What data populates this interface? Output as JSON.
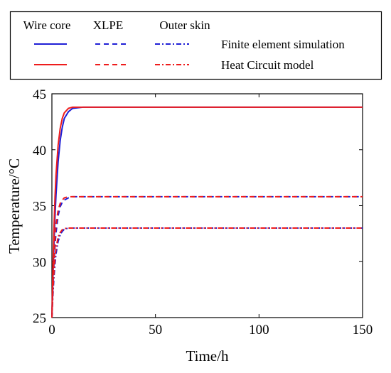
{
  "chart_data": {
    "type": "line",
    "title": "",
    "xlabel": "Time/h",
    "ylabel": "Temperature/°C",
    "xlim": [
      0,
      150
    ],
    "ylim": [
      25,
      45
    ],
    "xticks": [
      0,
      50,
      100,
      150
    ],
    "yticks": [
      25,
      30,
      35,
      40,
      45
    ],
    "grid": false,
    "legend": {
      "placement": "top",
      "columns": [
        "Wire core",
        "XLPE",
        "Outer skin"
      ],
      "rows": [
        "Finite element simulation",
        "Heat Circuit model"
      ]
    },
    "colors": {
      "simulation": "#1f1fd6",
      "model": "#ee1c1c"
    },
    "series": [
      {
        "layer": "Wire core",
        "method": "Finite element simulation",
        "style": "solid",
        "x": [
          0,
          0.5,
          1,
          1.5,
          2,
          3,
          4,
          5,
          6,
          8,
          10,
          15,
          20,
          30,
          50,
          75,
          100,
          125,
          150
        ],
        "y": [
          25,
          28.5,
          31.5,
          34.0,
          36.0,
          38.9,
          40.8,
          42.0,
          42.8,
          43.4,
          43.7,
          43.8,
          43.8,
          43.8,
          43.8,
          43.8,
          43.8,
          43.8,
          43.8
        ]
      },
      {
        "layer": "Wire core",
        "method": "Heat Circuit model",
        "style": "solid",
        "x": [
          0,
          0.5,
          1,
          1.5,
          2,
          3,
          4,
          5,
          6,
          8,
          10,
          15,
          20,
          30,
          50,
          75,
          100,
          125,
          150
        ],
        "y": [
          25,
          29.5,
          33.0,
          35.8,
          37.8,
          40.4,
          41.9,
          42.8,
          43.3,
          43.7,
          43.8,
          43.8,
          43.8,
          43.8,
          43.8,
          43.8,
          43.8,
          43.8,
          43.8
        ]
      },
      {
        "layer": "XLPE",
        "method": "Finite element simulation",
        "style": "dashed",
        "x": [
          0,
          0.5,
          1,
          1.5,
          2,
          3,
          4,
          5,
          6,
          8,
          10,
          15,
          20,
          30,
          50,
          75,
          100,
          125,
          150
        ],
        "y": [
          25,
          27.8,
          29.8,
          31.4,
          32.6,
          34.1,
          34.9,
          35.3,
          35.5,
          35.7,
          35.8,
          35.8,
          35.8,
          35.8,
          35.8,
          35.8,
          35.8,
          35.8,
          35.8
        ]
      },
      {
        "layer": "XLPE",
        "method": "Heat Circuit model",
        "style": "dashed",
        "x": [
          0,
          0.5,
          1,
          1.5,
          2,
          3,
          4,
          5,
          6,
          8,
          10,
          15,
          20,
          30,
          50,
          75,
          100,
          125,
          150
        ],
        "y": [
          25,
          28.4,
          30.6,
          32.2,
          33.3,
          34.6,
          35.2,
          35.5,
          35.7,
          35.8,
          35.8,
          35.8,
          35.8,
          35.8,
          35.8,
          35.8,
          35.8,
          35.8,
          35.8
        ]
      },
      {
        "layer": "Outer skin",
        "method": "Finite element simulation",
        "style": "dashdot",
        "x": [
          0,
          0.5,
          1,
          1.5,
          2,
          3,
          4,
          5,
          6,
          8,
          10,
          15,
          20,
          30,
          50,
          75,
          100,
          125,
          150
        ],
        "y": [
          25,
          27.0,
          28.6,
          29.8,
          30.7,
          31.8,
          32.4,
          32.7,
          32.9,
          33.0,
          33.0,
          33.0,
          33.0,
          33.0,
          33.0,
          33.0,
          33.0,
          33.0,
          33.0
        ]
      },
      {
        "layer": "Outer skin",
        "method": "Heat Circuit model",
        "style": "dashdot",
        "x": [
          0,
          0.5,
          1,
          1.5,
          2,
          3,
          4,
          5,
          6,
          8,
          10,
          15,
          20,
          30,
          50,
          75,
          100,
          125,
          150
        ],
        "y": [
          25,
          27.5,
          29.2,
          30.4,
          31.2,
          32.2,
          32.6,
          32.85,
          32.95,
          33.0,
          33.0,
          33.0,
          33.0,
          33.0,
          33.0,
          33.0,
          33.0,
          33.0,
          33.0
        ]
      }
    ]
  }
}
